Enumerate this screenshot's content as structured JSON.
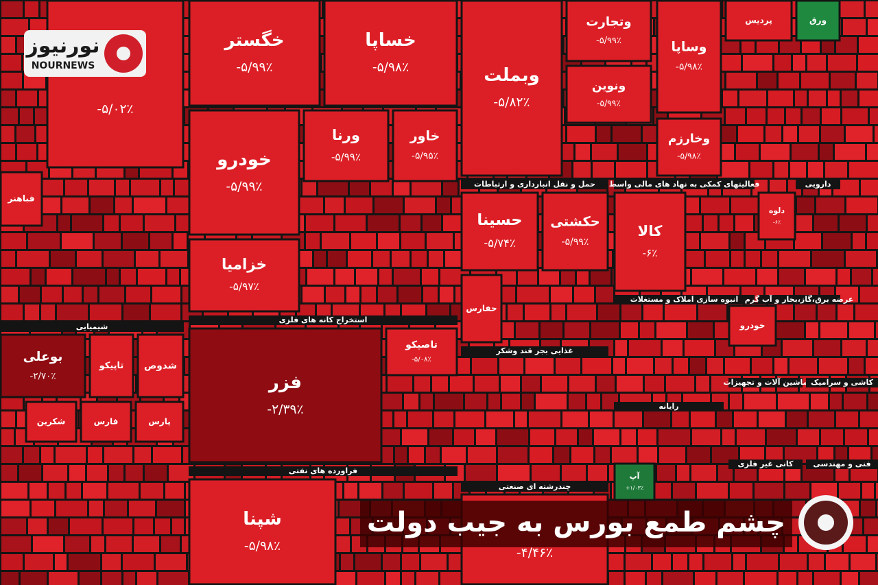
{
  "logo": {
    "title": "نورنیوز",
    "subtitle": "NOURNEWS"
  },
  "headline": "چشم طمع بورس به جیب دولت",
  "tiles": [
    {
      "change": "-۵/۰۲٪"
    },
    {
      "name": "خگستر",
      "change": "-۵/۹۹٪"
    },
    {
      "name": "خساپا",
      "change": "-۵/۹۸٪"
    },
    {
      "name": "وبملت",
      "change": "-۵/۸۲٪"
    },
    {
      "name": "وتجارت",
      "change": "-۵/۹۹٪"
    },
    {
      "name": "ونوین",
      "change": "-۵/۹۹٪"
    },
    {
      "name": "وساپا",
      "change": "-۵/۹۸٪"
    },
    {
      "name": "وخارزم",
      "change": "-۵/۹۸٪"
    },
    {
      "name": "خودرو",
      "change": "-۵/۹۹٪"
    },
    {
      "name": "خزامیا",
      "change": "-۵/۹۷٪"
    },
    {
      "name": "ورنا",
      "change": "-۵/۹۹٪"
    },
    {
      "name": "خاور",
      "change": "-۵/۹۵٪"
    },
    {
      "name": "فزر",
      "change": "-۲/۳۹٪"
    },
    {
      "name": "تاصیکو",
      "change": "-۵/۰۸٪"
    },
    {
      "name": "حسینا",
      "change": "-۵/۷۴٪"
    },
    {
      "name": "حکشتی",
      "change": "-۵/۹۹٪"
    },
    {
      "name": "کالا",
      "change": "-۶٪"
    },
    {
      "name": "دلوه",
      "change": "-۶٪"
    },
    {
      "name": "بوعلی",
      "change": "-۲/۷۰٪"
    },
    {
      "name": "شپنا",
      "change": "-۵/۹۸٪"
    },
    {
      "change": "-۴/۴۶٪"
    },
    {
      "name": "آپ",
      "change": "+۱/۰۳٪"
    },
    {
      "name": "ورق"
    },
    {
      "name": "تاپیکو"
    },
    {
      "name": "شدوص"
    },
    {
      "name": "شکرین"
    },
    {
      "name": "فارس"
    },
    {
      "name": "پارس"
    },
    {
      "name": "فباهنر"
    },
    {
      "name": "حفارس"
    },
    {
      "name": "پردیس"
    },
    {
      "name": "خودرو"
    }
  ],
  "sectors": [
    "شیمیایی",
    "استخراج کانه های فلزی",
    "حمل و نقل انبارداری و ارتباطات",
    "فعالیتهای کمکی به نهاد های مالی واسط",
    "دارویی",
    "انبوه سازی املاک و مستغلات",
    "عرضه برق،گاز،بخار و آب گرم",
    "غذایی بجز قند وشکر",
    "فراورده های نفتی",
    "رایانه",
    "ماشین آلات و تجهیزات",
    "کاشی و سرامیک",
    "چندرشته ای صنعتی",
    "کانی غیر فلزی",
    "فنی و مهندسی"
  ]
}
